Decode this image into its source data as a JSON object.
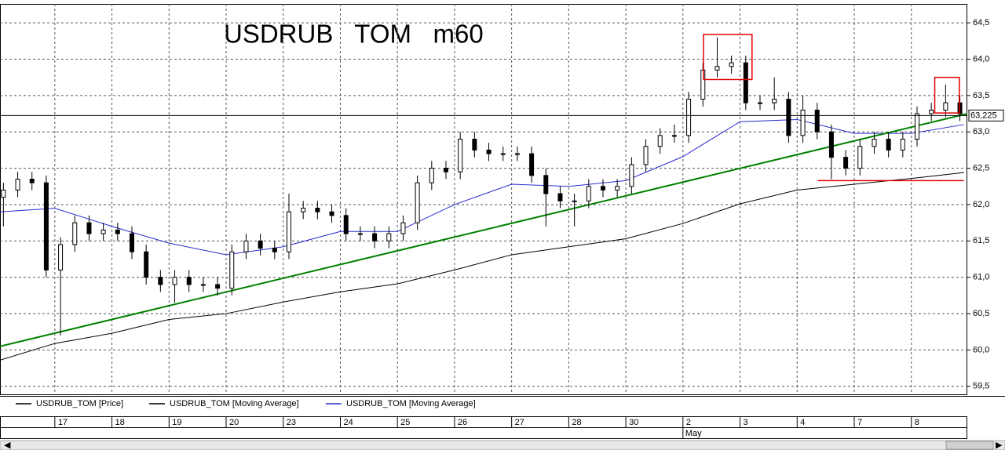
{
  "chart_data": {
    "type": "candlestick",
    "title": "USDRUB   TOM   m60",
    "xlim": [
      0.04,
      16.98
    ],
    "ylim": [
      59.39,
      64.76
    ],
    "yticks": [
      {
        "value": 59.5,
        "label": "59,5"
      },
      {
        "value": 60,
        "label": "60,0"
      },
      {
        "value": 60.5,
        "label": "60,5"
      },
      {
        "value": 61,
        "label": "61,0"
      },
      {
        "value": 61.5,
        "label": "61,5"
      },
      {
        "value": 62,
        "label": "62,0"
      },
      {
        "value": 62.5,
        "label": "62,5"
      },
      {
        "value": 63,
        "label": "63,0"
      },
      {
        "value": 63.5,
        "label": "63,5"
      },
      {
        "value": 64,
        "label": "64,0"
      },
      {
        "value": 64.5,
        "label": "64,5"
      }
    ],
    "xticks": [
      {
        "value": 1,
        "label": "17"
      },
      {
        "value": 2,
        "label": "18"
      },
      {
        "value": 3,
        "label": "19"
      },
      {
        "value": 4,
        "label": "20"
      },
      {
        "value": 5,
        "label": "23"
      },
      {
        "value": 6,
        "label": "24"
      },
      {
        "value": 7,
        "label": "25"
      },
      {
        "value": 8,
        "label": "26"
      },
      {
        "value": 9,
        "label": "27"
      },
      {
        "value": 10,
        "label": "28"
      },
      {
        "value": 11,
        "label": "30"
      },
      {
        "value": 12,
        "label": "2"
      },
      {
        "value": 13,
        "label": "3"
      },
      {
        "value": 14,
        "label": "4"
      },
      {
        "value": 15,
        "label": "7"
      },
      {
        "value": 16,
        "label": "8"
      }
    ],
    "month_label": {
      "value": 12,
      "label": "May"
    },
    "grid": true,
    "last_price": 63.225,
    "last_price_label": "63,225",
    "price": {
      "name": "USDRUB_TOM [Price]",
      "color": "#000000",
      "x": [
        0.1,
        0.35,
        0.6,
        0.85,
        1.1,
        1.35,
        1.6,
        1.85,
        2.1,
        2.35,
        2.6,
        2.85,
        3.1,
        3.35,
        3.6,
        3.85,
        4.1,
        4.35,
        4.6,
        4.85,
        5.1,
        5.35,
        5.6,
        5.85,
        6.1,
        6.35,
        6.6,
        6.85,
        7.1,
        7.35,
        7.6,
        7.85,
        8.1,
        8.35,
        8.6,
        8.85,
        9.1,
        9.35,
        9.6,
        9.85,
        10.1,
        10.35,
        10.6,
        10.85,
        11.1,
        11.35,
        11.6,
        11.85,
        12.1,
        12.35,
        12.6,
        12.85,
        13.1,
        13.35,
        13.6,
        13.85,
        14.1,
        14.35,
        14.6,
        14.85,
        15.1,
        15.35,
        15.6,
        15.85,
        16.1,
        16.35,
        16.6,
        16.85
      ],
      "open": [
        62.1,
        62.2,
        62.35,
        62.3,
        61.1,
        61.45,
        61.75,
        61.6,
        61.65,
        61.6,
        61.35,
        61.0,
        60.9,
        61.0,
        60.9,
        60.9,
        60.85,
        61.35,
        61.5,
        61.4,
        61.35,
        61.9,
        61.95,
        61.9,
        61.85,
        61.6,
        61.6,
        61.5,
        61.6,
        61.75,
        62.3,
        62.5,
        62.45,
        62.9,
        62.75,
        62.7,
        62.7,
        62.7,
        62.4,
        62.15,
        62.05,
        62.05,
        62.25,
        62.2,
        62.25,
        62.55,
        62.8,
        62.95,
        62.95,
        63.45,
        63.85,
        63.9,
        63.95,
        63.4,
        63.4,
        63.45,
        62.95,
        63.3,
        63.0,
        62.65,
        62.5,
        62.8,
        62.9,
        62.75,
        62.9,
        63.25,
        63.3,
        63.4
      ],
      "high": [
        62.3,
        62.45,
        62.45,
        62.4,
        61.55,
        61.85,
        61.85,
        61.75,
        61.75,
        61.7,
        61.45,
        61.1,
        61.1,
        61.1,
        61.0,
        61.0,
        61.45,
        61.6,
        61.6,
        61.5,
        62.15,
        62.05,
        62.05,
        62.0,
        61.95,
        61.7,
        61.7,
        61.7,
        61.85,
        62.4,
        62.6,
        62.6,
        63.0,
        63.0,
        62.85,
        62.8,
        62.8,
        62.8,
        62.5,
        62.25,
        62.15,
        62.35,
        62.35,
        62.35,
        62.65,
        62.9,
        63.05,
        63.1,
        63.55,
        63.95,
        64.3,
        64.05,
        64.05,
        63.5,
        63.75,
        63.55,
        63.5,
        63.4,
        63.1,
        62.75,
        62.9,
        63.0,
        63.0,
        63.0,
        63.35,
        63.4,
        63.65,
        63.5
      ],
      "low": [
        61.7,
        62.1,
        62.2,
        61.0,
        60.2,
        61.35,
        61.5,
        61.5,
        61.5,
        61.25,
        60.9,
        60.8,
        60.65,
        60.8,
        60.8,
        60.75,
        60.75,
        61.25,
        61.3,
        61.25,
        61.25,
        61.8,
        61.8,
        61.75,
        61.5,
        61.5,
        61.4,
        61.4,
        61.5,
        61.65,
        62.2,
        62.35,
        62.35,
        62.65,
        62.6,
        62.6,
        62.6,
        62.3,
        61.7,
        61.95,
        61.7,
        61.95,
        62.1,
        62.1,
        62.15,
        62.45,
        62.7,
        62.85,
        62.85,
        63.35,
        63.75,
        63.8,
        63.3,
        63.3,
        63.3,
        62.85,
        62.85,
        62.9,
        62.35,
        62.4,
        62.4,
        62.7,
        62.65,
        62.65,
        62.8,
        63.15,
        63.2,
        63.15
      ],
      "close": [
        62.2,
        62.35,
        62.3,
        61.1,
        61.45,
        61.75,
        61.6,
        61.65,
        61.6,
        61.35,
        61.0,
        60.9,
        61.0,
        60.9,
        60.9,
        60.85,
        61.35,
        61.5,
        61.4,
        61.35,
        61.9,
        61.95,
        61.9,
        61.85,
        61.6,
        61.6,
        61.5,
        61.6,
        61.75,
        62.3,
        62.5,
        62.45,
        62.9,
        62.75,
        62.7,
        62.7,
        62.7,
        62.4,
        62.15,
        62.05,
        62.05,
        62.25,
        62.2,
        62.25,
        62.55,
        62.8,
        62.95,
        62.95,
        63.45,
        63.85,
        63.9,
        63.95,
        63.4,
        63.4,
        63.45,
        62.95,
        63.3,
        63.0,
        62.65,
        62.5,
        62.8,
        62.9,
        62.75,
        62.9,
        63.25,
        63.3,
        63.4,
        63.25
      ]
    },
    "series": [
      {
        "name": "USDRUB_TOM [Moving Average]",
        "color": "#000000",
        "x": [
          0.04,
          1,
          2,
          3,
          4,
          5,
          6,
          7,
          8,
          9,
          10,
          11,
          12,
          13,
          14,
          15,
          16,
          16.92
        ],
        "values": [
          59.86,
          60.09,
          60.23,
          60.42,
          60.5,
          60.66,
          60.8,
          60.91,
          61.1,
          61.31,
          61.42,
          61.53,
          61.74,
          62.01,
          62.2,
          62.28,
          62.36,
          62.44
        ]
      },
      {
        "name": "USDRUB_TOM [Moving Average]",
        "color": "#2b2bd0",
        "x": [
          0.04,
          1,
          2,
          3,
          4,
          5,
          6,
          7,
          8,
          9,
          10,
          11,
          12,
          13,
          14,
          15,
          16,
          16.92
        ],
        "values": [
          61.9,
          61.95,
          61.7,
          61.47,
          61.31,
          61.42,
          61.63,
          61.63,
          62.0,
          62.28,
          62.25,
          62.33,
          62.66,
          63.14,
          63.17,
          62.98,
          62.98,
          63.1
        ]
      }
    ],
    "trend_line": {
      "x": [
        0.04,
        16.98
      ],
      "y": [
        60.05,
        63.25
      ],
      "color": "#008000"
    },
    "support_line": {
      "x": [
        14.36,
        16.92
      ],
      "y": 62.33,
      "color": "#e00000"
    },
    "boxes": [
      {
        "x": [
          12.36,
          13.21
        ],
        "y": [
          63.72,
          64.34
        ],
        "color": "#e00000"
      },
      {
        "x": [
          16.41,
          16.84
        ],
        "y": [
          63.26,
          63.75
        ],
        "color": "#e00000"
      }
    ]
  }
}
